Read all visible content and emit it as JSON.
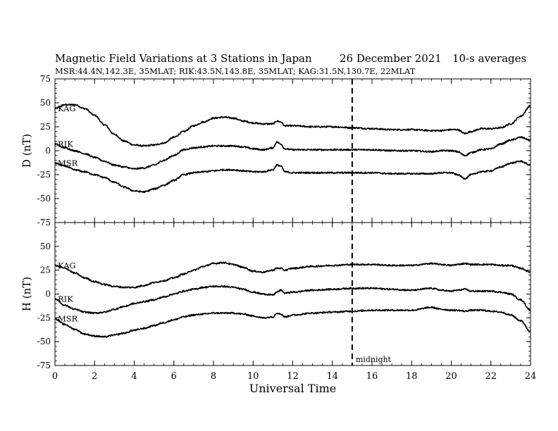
{
  "chart_data": {
    "type": "line",
    "title": "Magnetic Field Variations at 3 Stations in Japan",
    "date": "26 December 2021",
    "averaging": "10-s averages",
    "subtitle": "MSR:44.4N,142.3E, 35MLAT;  RIK:43.5N,143.8E, 35MLAT;  KAG:31.5N,130.7E, 22MLAT",
    "xlabel": "Universal Time",
    "xlim": [
      0,
      24
    ],
    "xticks": [
      0,
      2,
      4,
      6,
      8,
      10,
      12,
      14,
      16,
      18,
      20,
      22,
      24
    ],
    "marker": {
      "x": 15,
      "label": "midnight"
    },
    "panels": [
      {
        "ylabel": "D (nT)",
        "ylim": [
          -75,
          75
        ],
        "yticks": [
          75,
          50,
          25,
          0,
          -25,
          -50,
          -75
        ],
        "series": [
          {
            "name": "KAG",
            "x": [
              0,
              0.5,
              1,
              1.5,
              2,
              2.5,
              3,
              3.5,
              4,
              4.5,
              5,
              5.5,
              6,
              6.5,
              7,
              7.5,
              8,
              8.5,
              9,
              9.5,
              10,
              10.5,
              11,
              11.2,
              11.4,
              11.6,
              12,
              13,
              14,
              15,
              16,
              17,
              18,
              19,
              19.5,
              20,
              20.3,
              20.7,
              21,
              21.5,
              22,
              22.5,
              23,
              23.5,
              24
            ],
            "values": [
              44,
              48,
              48,
              44,
              37,
              27,
              17,
              10,
              6,
              5,
              6,
              8,
              14,
              20,
              26,
              30,
              34,
              35,
              34,
              31,
              29,
              28,
              28,
              31,
              30,
              26,
              26,
              25,
              25,
              24,
              23,
              22,
              22,
              21,
              21,
              22,
              22,
              18,
              20,
              23,
              23,
              24,
              28,
              36,
              47
            ]
          },
          {
            "name": "RIK",
            "x": [
              0,
              0.5,
              1,
              1.5,
              2,
              2.5,
              3,
              3.5,
              4,
              4.5,
              5,
              5.5,
              6,
              6.5,
              7,
              7.5,
              8,
              8.5,
              9,
              9.5,
              10,
              10.5,
              11,
              11.2,
              11.4,
              11.6,
              12,
              13,
              14,
              15,
              16,
              17,
              18,
              19,
              19.5,
              20,
              20.3,
              20.7,
              21,
              21.5,
              22,
              22.5,
              23,
              23.5,
              24
            ],
            "values": [
              7,
              3,
              0,
              -3,
              -7,
              -11,
              -15,
              -17,
              -19,
              -18,
              -15,
              -10,
              -5,
              1,
              3,
              4,
              5,
              5,
              5,
              4,
              2,
              1,
              3,
              9,
              7,
              2,
              1,
              1,
              1,
              1,
              1,
              0,
              0,
              -1,
              0,
              0,
              -1,
              -5,
              -2,
              1,
              2,
              7,
              11,
              14,
              11
            ]
          },
          {
            "name": "MSR",
            "x": [
              0,
              0.5,
              1,
              1.5,
              2,
              2.5,
              3,
              3.5,
              4,
              4.5,
              5,
              5.5,
              6,
              6.5,
              7,
              7.5,
              8,
              8.5,
              9,
              9.5,
              10,
              10.5,
              11,
              11.2,
              11.4,
              11.6,
              12,
              13,
              14,
              15,
              16,
              17,
              18,
              19,
              19.5,
              20,
              20.3,
              20.7,
              21,
              21.5,
              22,
              22.5,
              23,
              23.5,
              24
            ],
            "values": [
              -13,
              -16,
              -20,
              -22,
              -25,
              -28,
              -33,
              -38,
              -42,
              -43,
              -40,
              -36,
              -31,
              -25,
              -23,
              -22,
              -21,
              -20,
              -20,
              -21,
              -22,
              -22,
              -20,
              -15,
              -16,
              -22,
              -23,
              -23,
              -23,
              -23,
              -23,
              -24,
              -24,
              -24,
              -23,
              -23,
              -25,
              -29,
              -25,
              -22,
              -21,
              -17,
              -13,
              -11,
              -15
            ]
          }
        ]
      },
      {
        "ylabel": "H (nT)",
        "ylim": [
          -75,
          75
        ],
        "yticks": [
          75,
          50,
          25,
          0,
          -25,
          -50,
          -75
        ],
        "series": [
          {
            "name": "KAG",
            "x": [
              0,
              0.5,
              1,
              1.5,
              2,
              2.5,
              3,
              3.5,
              4,
              4.5,
              5,
              5.5,
              6,
              6.5,
              7,
              7.5,
              8,
              8.5,
              9,
              9.5,
              10,
              10.5,
              11,
              11.2,
              11.4,
              11.6,
              12,
              13,
              14,
              15,
              16,
              17,
              18,
              19,
              19.5,
              20,
              20.3,
              20.7,
              21,
              21.5,
              22,
              22.5,
              23,
              23.5,
              24
            ],
            "values": [
              30,
              27,
              22,
              17,
              13,
              10,
              8,
              7,
              7,
              9,
              12,
              14,
              17,
              21,
              25,
              29,
              32,
              33,
              31,
              28,
              24,
              23,
              25,
              27,
              27,
              25,
              27,
              29,
              30,
              31,
              31,
              30,
              30,
              32,
              31,
              30,
              31,
              32,
              31,
              31,
              31,
              30,
              30,
              27,
              23
            ]
          },
          {
            "name": "RIK",
            "x": [
              0,
              0.5,
              1,
              1.5,
              2,
              2.5,
              3,
              3.5,
              4,
              4.5,
              5,
              5.5,
              6,
              6.5,
              7,
              7.5,
              8,
              8.5,
              9,
              9.5,
              10,
              10.5,
              11,
              11.2,
              11.4,
              11.6,
              12,
              13,
              14,
              15,
              16,
              17,
              18,
              19,
              19.5,
              20,
              20.3,
              20.7,
              21,
              21.5,
              22,
              22.5,
              23,
              23.5,
              24
            ],
            "values": [
              -5,
              -12,
              -16,
              -19,
              -20,
              -19,
              -16,
              -13,
              -10,
              -8,
              -6,
              -3,
              0,
              3,
              5,
              7,
              8,
              8,
              7,
              5,
              2,
              0,
              -1,
              2,
              4,
              1,
              2,
              4,
              5,
              6,
              6,
              5,
              4,
              6,
              4,
              3,
              4,
              5,
              3,
              3,
              3,
              2,
              0,
              -6,
              -17
            ]
          },
          {
            "name": "MSR",
            "x": [
              0,
              0.5,
              1,
              1.5,
              2,
              2.5,
              3,
              3.5,
              4,
              4.5,
              5,
              5.5,
              6,
              6.5,
              7,
              7.5,
              8,
              8.5,
              9,
              9.5,
              10,
              10.5,
              11,
              11.2,
              11.4,
              11.6,
              12,
              13,
              14,
              15,
              16,
              17,
              18,
              19,
              19.5,
              20,
              20.3,
              20.7,
              21,
              21.5,
              22,
              22.5,
              23,
              23.5,
              24
            ],
            "values": [
              -26,
              -32,
              -37,
              -42,
              -44,
              -45,
              -43,
              -41,
              -38,
              -36,
              -33,
              -30,
              -27,
              -24,
              -22,
              -21,
              -20,
              -20,
              -20,
              -21,
              -23,
              -25,
              -24,
              -20,
              -21,
              -24,
              -22,
              -20,
              -19,
              -18,
              -17,
              -17,
              -17,
              -14,
              -16,
              -17,
              -17,
              -18,
              -17,
              -17,
              -18,
              -19,
              -22,
              -28,
              -39
            ]
          }
        ]
      }
    ]
  }
}
